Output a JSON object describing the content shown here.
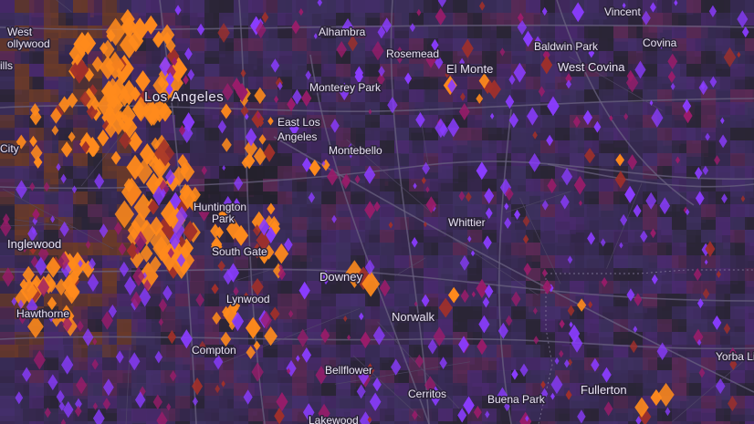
{
  "map": {
    "basemap_color": "#2e2540",
    "region_colors": [
      "#3a2d5a",
      "#452f6b",
      "#4a2a6e",
      "#37284f",
      "#2a2535",
      "#5a2a55",
      "#3e3160"
    ],
    "symbol_colors": {
      "orange": "#ff8a1c",
      "violet": "#8a3cff",
      "magenta": "#9a1c6a",
      "red_brown": "#a0302a"
    },
    "places": [
      {
        "id": "west-hollywood-1",
        "text": "West"
      },
      {
        "id": "west-hollywood-2",
        "text": "ollywood"
      },
      {
        "id": "beverly-hills",
        "text": "ills"
      },
      {
        "id": "culver-city",
        "text": "City"
      },
      {
        "id": "alhambra",
        "text": "Alhambra"
      },
      {
        "id": "rosemead",
        "text": "Rosemead"
      },
      {
        "id": "vincent",
        "text": "Vincent"
      },
      {
        "id": "baldwin-park",
        "text": "Baldwin Park"
      },
      {
        "id": "covina",
        "text": "Covina"
      },
      {
        "id": "los-angeles",
        "text": "Los Angeles"
      },
      {
        "id": "el-monte",
        "text": "El Monte"
      },
      {
        "id": "west-covina",
        "text": "West Covina"
      },
      {
        "id": "monterey-park",
        "text": "Monterey Park"
      },
      {
        "id": "east-los-angeles-1",
        "text": "East Los"
      },
      {
        "id": "east-los-angeles-2",
        "text": "Angeles"
      },
      {
        "id": "montebello",
        "text": "Montebello"
      },
      {
        "id": "whittier",
        "text": "Whittier"
      },
      {
        "id": "huntington-park-1",
        "text": "Huntington"
      },
      {
        "id": "huntington-park-2",
        "text": "Park"
      },
      {
        "id": "inglewood",
        "text": "Inglewood"
      },
      {
        "id": "south-gate",
        "text": "South Gate"
      },
      {
        "id": "downey",
        "text": "Downey"
      },
      {
        "id": "lynwood",
        "text": "Lynwood"
      },
      {
        "id": "hawthorne",
        "text": "Hawthorne"
      },
      {
        "id": "norwalk",
        "text": "Norwalk"
      },
      {
        "id": "compton",
        "text": "Compton"
      },
      {
        "id": "bellflower",
        "text": "Bellflower"
      },
      {
        "id": "cerritos",
        "text": "Cerritos"
      },
      {
        "id": "buena-park",
        "text": "Buena Park"
      },
      {
        "id": "fullerton",
        "text": "Fullerton"
      },
      {
        "id": "yorba-linda",
        "text": "Yorba Li"
      },
      {
        "id": "lakewood",
        "text": "Lakewood"
      }
    ]
  }
}
